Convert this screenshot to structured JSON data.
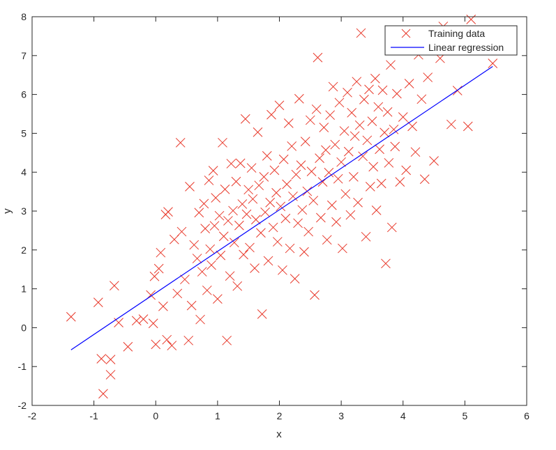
{
  "chart_data": {
    "type": "scatter",
    "title": "",
    "xlabel": "x",
    "ylabel": "y",
    "xlim": [
      -2,
      6
    ],
    "ylim": [
      -2,
      8
    ],
    "xticks": [
      -2,
      -1,
      0,
      1,
      2,
      3,
      4,
      5,
      6
    ],
    "yticks": [
      -2,
      -1,
      0,
      1,
      2,
      3,
      4,
      5,
      6,
      7,
      8
    ],
    "grid": false,
    "legend_position": "top-right",
    "series": [
      {
        "name": "Training data",
        "kind": "scatter",
        "marker": "x",
        "color": "#e8392b",
        "points": [
          [
            -1.37,
            0.28
          ],
          [
            -0.93,
            0.65
          ],
          [
            -0.88,
            -0.8
          ],
          [
            -0.85,
            -1.7
          ],
          [
            -0.73,
            -0.82
          ],
          [
            -0.73,
            -1.21
          ],
          [
            -0.67,
            1.08
          ],
          [
            -0.6,
            0.13
          ],
          [
            -0.45,
            -0.49
          ],
          [
            -0.31,
            0.18
          ],
          [
            -0.2,
            0.22
          ],
          [
            -0.08,
            0.84
          ],
          [
            -0.04,
            0.11
          ],
          [
            -0.02,
            1.32
          ],
          [
            0.0,
            -0.43
          ],
          [
            0.05,
            1.52
          ],
          [
            0.08,
            1.93
          ],
          [
            0.12,
            0.55
          ],
          [
            0.16,
            2.91
          ],
          [
            0.2,
            2.98
          ],
          [
            0.18,
            -0.31
          ],
          [
            0.26,
            -0.46
          ],
          [
            0.3,
            2.27
          ],
          [
            0.35,
            0.88
          ],
          [
            0.4,
            4.76
          ],
          [
            0.42,
            2.47
          ],
          [
            0.47,
            1.24
          ],
          [
            0.53,
            -0.33
          ],
          [
            0.55,
            3.63
          ],
          [
            0.58,
            0.57
          ],
          [
            0.62,
            2.13
          ],
          [
            0.67,
            1.78
          ],
          [
            0.7,
            2.96
          ],
          [
            0.72,
            0.21
          ],
          [
            0.75,
            1.44
          ],
          [
            0.78,
            3.19
          ],
          [
            0.8,
            2.55
          ],
          [
            0.83,
            0.96
          ],
          [
            0.86,
            3.79
          ],
          [
            0.88,
            2.02
          ],
          [
            0.9,
            1.61
          ],
          [
            0.93,
            4.04
          ],
          [
            0.95,
            2.62
          ],
          [
            0.97,
            3.34
          ],
          [
            1.0,
            0.74
          ],
          [
            1.03,
            2.88
          ],
          [
            1.05,
            1.86
          ],
          [
            1.08,
            4.76
          ],
          [
            1.1,
            2.35
          ],
          [
            1.12,
            3.56
          ],
          [
            1.15,
            -0.33
          ],
          [
            1.17,
            2.75
          ],
          [
            1.2,
            1.33
          ],
          [
            1.22,
            4.22
          ],
          [
            1.25,
            3.01
          ],
          [
            1.27,
            2.19
          ],
          [
            1.3,
            3.76
          ],
          [
            1.32,
            1.07
          ],
          [
            1.35,
            2.63
          ],
          [
            1.37,
            4.23
          ],
          [
            1.4,
            3.18
          ],
          [
            1.42,
            1.88
          ],
          [
            1.45,
            5.37
          ],
          [
            1.47,
            2.92
          ],
          [
            1.5,
            3.55
          ],
          [
            1.52,
            2.06
          ],
          [
            1.55,
            4.11
          ],
          [
            1.57,
            3.31
          ],
          [
            1.6,
            1.53
          ],
          [
            1.62,
            2.78
          ],
          [
            1.65,
            5.03
          ],
          [
            1.67,
            3.66
          ],
          [
            1.7,
            2.44
          ],
          [
            1.72,
            0.35
          ],
          [
            1.75,
            3.88
          ],
          [
            1.77,
            2.97
          ],
          [
            1.8,
            4.42
          ],
          [
            1.82,
            1.72
          ],
          [
            1.85,
            3.22
          ],
          [
            1.87,
            5.48
          ],
          [
            1.9,
            2.58
          ],
          [
            1.92,
            4.05
          ],
          [
            1.95,
            3.47
          ],
          [
            1.97,
            2.21
          ],
          [
            2.0,
            5.72
          ],
          [
            2.02,
            3.12
          ],
          [
            2.05,
            1.48
          ],
          [
            2.07,
            4.33
          ],
          [
            2.1,
            2.81
          ],
          [
            2.12,
            3.69
          ],
          [
            2.15,
            5.26
          ],
          [
            2.17,
            2.04
          ],
          [
            2.2,
            4.67
          ],
          [
            2.22,
            3.38
          ],
          [
            2.25,
            1.26
          ],
          [
            2.27,
            3.94
          ],
          [
            2.3,
            2.69
          ],
          [
            2.32,
            5.89
          ],
          [
            2.35,
            4.18
          ],
          [
            2.37,
            3.03
          ],
          [
            2.4,
            1.95
          ],
          [
            2.42,
            4.79
          ],
          [
            2.45,
            3.51
          ],
          [
            2.47,
            2.47
          ],
          [
            2.5,
            5.34
          ],
          [
            2.52,
            4.02
          ],
          [
            2.55,
            3.27
          ],
          [
            2.57,
            0.84
          ],
          [
            2.6,
            5.62
          ],
          [
            2.62,
            6.95
          ],
          [
            2.65,
            4.36
          ],
          [
            2.67,
            2.83
          ],
          [
            2.7,
            3.75
          ],
          [
            2.72,
            5.15
          ],
          [
            2.75,
            4.57
          ],
          [
            2.77,
            2.26
          ],
          [
            2.8,
            3.99
          ],
          [
            2.82,
            5.47
          ],
          [
            2.85,
            3.15
          ],
          [
            2.87,
            6.2
          ],
          [
            2.9,
            4.71
          ],
          [
            2.92,
            2.72
          ],
          [
            2.95,
            3.83
          ],
          [
            2.97,
            5.79
          ],
          [
            3.0,
            4.26
          ],
          [
            3.02,
            2.04
          ],
          [
            3.05,
            5.06
          ],
          [
            3.07,
            3.44
          ],
          [
            3.1,
            6.05
          ],
          [
            3.12,
            4.53
          ],
          [
            3.15,
            2.9
          ],
          [
            3.17,
            5.53
          ],
          [
            3.2,
            3.88
          ],
          [
            3.22,
            4.93
          ],
          [
            3.25,
            6.33
          ],
          [
            3.27,
            3.22
          ],
          [
            3.3,
            5.21
          ],
          [
            3.32,
            7.58
          ],
          [
            3.35,
            4.41
          ],
          [
            3.37,
            5.87
          ],
          [
            3.4,
            2.34
          ],
          [
            3.42,
            4.82
          ],
          [
            3.45,
            6.13
          ],
          [
            3.47,
            3.63
          ],
          [
            3.5,
            5.31
          ],
          [
            3.52,
            4.14
          ],
          [
            3.55,
            6.41
          ],
          [
            3.57,
            3.02
          ],
          [
            3.6,
            5.68
          ],
          [
            3.62,
            4.59
          ],
          [
            3.65,
            3.71
          ],
          [
            3.67,
            6.11
          ],
          [
            3.7,
            5.02
          ],
          [
            3.72,
            1.65
          ],
          [
            3.75,
            5.55
          ],
          [
            3.77,
            4.24
          ],
          [
            3.8,
            6.76
          ],
          [
            3.82,
            2.58
          ],
          [
            3.85,
            5.1
          ],
          [
            3.87,
            4.66
          ],
          [
            3.9,
            6.02
          ],
          [
            3.95,
            3.75
          ],
          [
            4.0,
            5.42
          ],
          [
            4.05,
            4.05
          ],
          [
            4.1,
            6.28
          ],
          [
            4.15,
            5.18
          ],
          [
            4.2,
            4.52
          ],
          [
            4.25,
            7.02
          ],
          [
            4.3,
            5.88
          ],
          [
            4.35,
            3.82
          ],
          [
            4.4,
            6.44
          ],
          [
            4.5,
            4.29
          ],
          [
            4.6,
            6.93
          ],
          [
            4.65,
            7.75
          ],
          [
            4.78,
            5.23
          ],
          [
            4.88,
            6.1
          ],
          [
            5.05,
            5.18
          ],
          [
            5.1,
            7.93
          ],
          [
            5.45,
            6.8
          ]
        ]
      },
      {
        "name": "Linear regression",
        "kind": "line",
        "color": "#0000ff",
        "x": [
          -1.37,
          5.45
        ],
        "y": [
          -0.57,
          6.72
        ]
      }
    ]
  }
}
